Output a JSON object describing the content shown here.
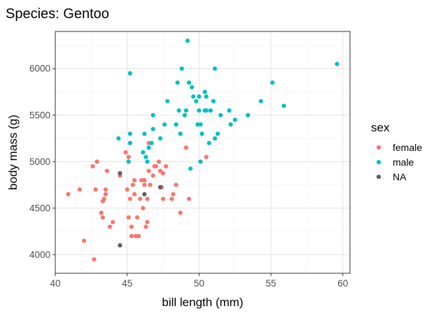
{
  "chart_data": {
    "type": "scatter",
    "title": "Species: Gentoo",
    "xlabel": "bill length (mm)",
    "ylabel": "body mass (g)",
    "xlim": [
      40,
      60.5
    ],
    "ylim": [
      3800,
      6400
    ],
    "xticks": [
      40,
      45,
      50,
      55,
      60
    ],
    "yticks": [
      4000,
      4500,
      5000,
      5500,
      6000
    ],
    "grid": true,
    "legend": {
      "title": "sex",
      "position": "right"
    },
    "series": [
      {
        "name": "female",
        "color": "#F8766D",
        "points": [
          [
            40.9,
            4650
          ],
          [
            41.7,
            4700
          ],
          [
            42.0,
            4150
          ],
          [
            42.6,
            4950
          ],
          [
            42.7,
            3950
          ],
          [
            42.8,
            4700
          ],
          [
            42.9,
            5000
          ],
          [
            43.2,
            4450
          ],
          [
            43.3,
            4400
          ],
          [
            43.3,
            4575
          ],
          [
            43.4,
            4600
          ],
          [
            43.5,
            4700
          ],
          [
            43.5,
            4650
          ],
          [
            43.6,
            4900
          ],
          [
            43.8,
            4300
          ],
          [
            44.0,
            4350
          ],
          [
            44.5,
            4850
          ],
          [
            44.9,
            5100
          ],
          [
            45.0,
            4700
          ],
          [
            45.1,
            5050
          ],
          [
            45.1,
            4400
          ],
          [
            45.2,
            5200
          ],
          [
            45.2,
            4600
          ],
          [
            45.3,
            4300
          ],
          [
            45.3,
            4200
          ],
          [
            45.4,
            4750
          ],
          [
            45.5,
            4800
          ],
          [
            45.5,
            4650
          ],
          [
            45.6,
            4200
          ],
          [
            45.7,
            4400
          ],
          [
            45.8,
            4200
          ],
          [
            45.9,
            4600
          ],
          [
            46.0,
            4800
          ],
          [
            46.1,
            4500
          ],
          [
            46.2,
            4750
          ],
          [
            46.2,
            4800
          ],
          [
            46.3,
            4300
          ],
          [
            46.4,
            4350
          ],
          [
            46.4,
            4600
          ],
          [
            46.5,
            4900
          ],
          [
            46.5,
            5200
          ],
          [
            46.6,
            4750
          ],
          [
            46.8,
            4850
          ],
          [
            46.9,
            4950
          ],
          [
            47.0,
            4950
          ],
          [
            47.2,
            5000
          ],
          [
            47.3,
            4900
          ],
          [
            47.4,
            4725
          ],
          [
            47.5,
            4600
          ],
          [
            47.5,
            4875
          ],
          [
            47.7,
            4950
          ],
          [
            48.1,
            4600
          ],
          [
            48.2,
            4650
          ],
          [
            48.4,
            4750
          ],
          [
            48.7,
            4450
          ],
          [
            49.1,
            5150
          ],
          [
            49.3,
            4600
          ],
          [
            50.5,
            5050
          ]
        ]
      },
      {
        "name": "male",
        "color": "#00BFC4",
        "points": [
          [
            44.4,
            5250
          ],
          [
            45.1,
            5000
          ],
          [
            45.2,
            5300
          ],
          [
            45.2,
            5950
          ],
          [
            45.2,
            5200
          ],
          [
            46.1,
            5100
          ],
          [
            46.2,
            5300
          ],
          [
            46.3,
            5050
          ],
          [
            46.4,
            5000
          ],
          [
            46.5,
            5150
          ],
          [
            46.7,
            5200
          ],
          [
            46.8,
            5500
          ],
          [
            46.8,
            5350
          ],
          [
            47.3,
            5250
          ],
          [
            47.6,
            5400
          ],
          [
            47.8,
            5650
          ],
          [
            48.4,
            5400
          ],
          [
            48.5,
            5850
          ],
          [
            48.6,
            5550
          ],
          [
            48.7,
            5300
          ],
          [
            48.8,
            6000
          ],
          [
            49.0,
            5500
          ],
          [
            49.1,
            5550
          ],
          [
            49.2,
            6300
          ],
          [
            49.3,
            5850
          ],
          [
            49.4,
            4925
          ],
          [
            49.5,
            5800
          ],
          [
            49.6,
            5700
          ],
          [
            49.8,
            5650
          ],
          [
            49.9,
            5400
          ],
          [
            50.0,
            5550
          ],
          [
            50.0,
            5700
          ],
          [
            50.1,
            5400
          ],
          [
            50.1,
            5000
          ],
          [
            50.2,
            5300
          ],
          [
            50.4,
            5550
          ],
          [
            50.4,
            5750
          ],
          [
            50.5,
            5550
          ],
          [
            50.5,
            5700
          ],
          [
            50.7,
            5200
          ],
          [
            50.8,
            5550
          ],
          [
            51.0,
            5650
          ],
          [
            51.1,
            5250
          ],
          [
            51.1,
            6000
          ],
          [
            51.3,
            5300
          ],
          [
            51.5,
            5500
          ],
          [
            52.1,
            5550
          ],
          [
            52.2,
            5400
          ],
          [
            52.5,
            5450
          ],
          [
            53.4,
            5500
          ],
          [
            54.3,
            5650
          ],
          [
            55.1,
            5850
          ],
          [
            55.9,
            5600
          ],
          [
            59.6,
            6050
          ]
        ]
      },
      {
        "name": "NA",
        "color": "#5F5F5F",
        "points": [
          [
            44.5,
            4100
          ],
          [
            44.5,
            4875
          ],
          [
            46.2,
            4650
          ],
          [
            47.3,
            4725
          ]
        ]
      }
    ]
  }
}
